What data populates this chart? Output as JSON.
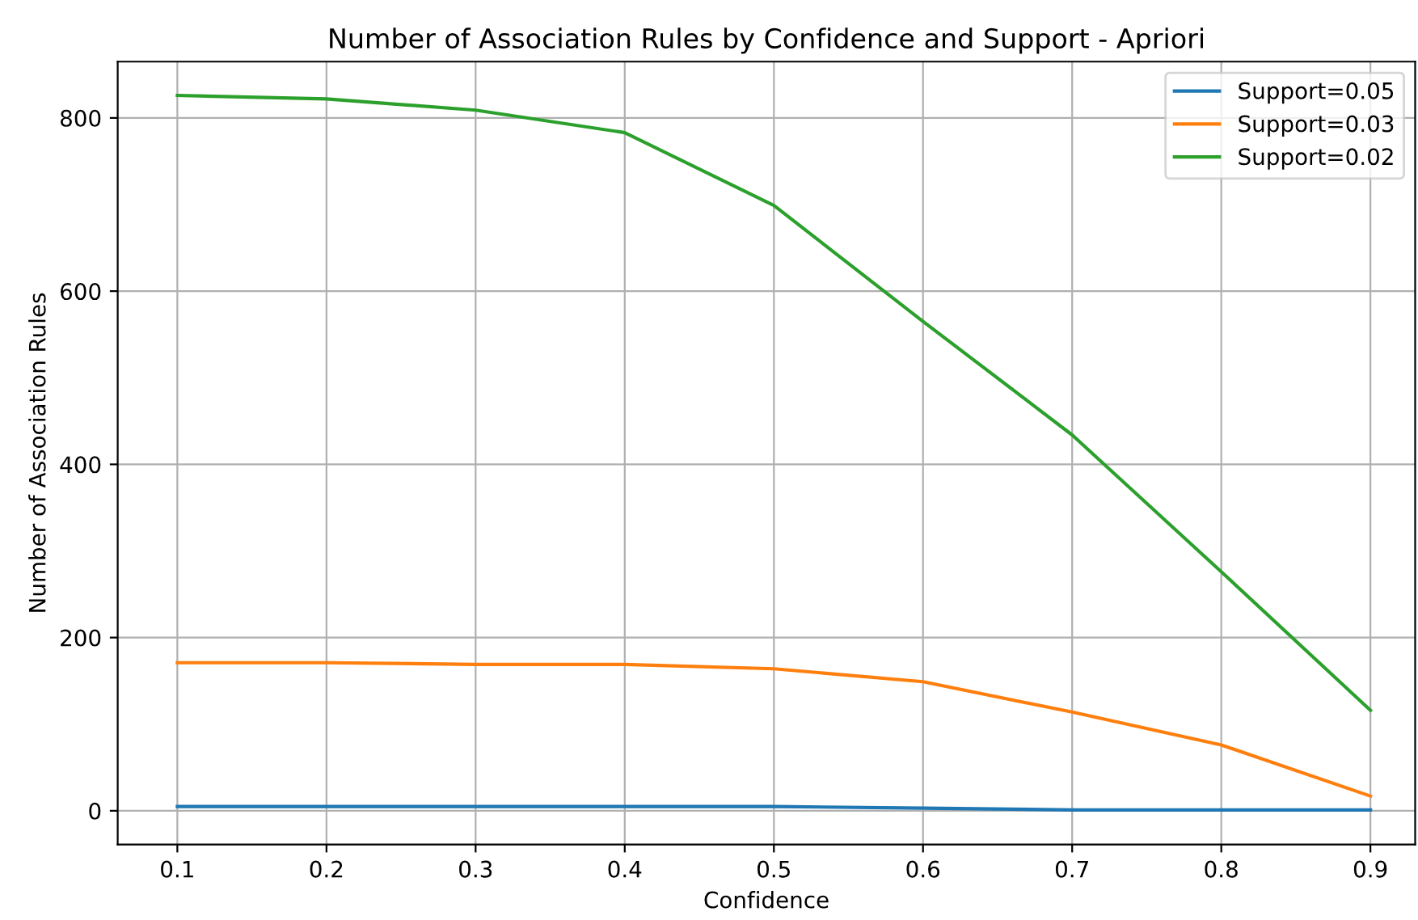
{
  "chart_data": {
    "type": "line",
    "title": "Number of Association Rules by Confidence and Support - Apriori",
    "xlabel": "Confidence",
    "ylabel": "Number of Association Rules",
    "x": [
      0.1,
      0.2,
      0.3,
      0.4,
      0.5,
      0.6,
      0.7,
      0.8,
      0.9
    ],
    "series": [
      {
        "name": "Support=0.05",
        "color": "#1f77b4",
        "values": [
          5,
          5,
          5,
          5,
          5,
          3,
          1,
          1,
          1
        ]
      },
      {
        "name": "Support=0.03",
        "color": "#ff7f0e",
        "values": [
          171,
          171,
          169,
          169,
          164,
          149,
          114,
          76,
          17
        ]
      },
      {
        "name": "Support=0.02",
        "color": "#2ca02c",
        "values": [
          826,
          822,
          809,
          783,
          699,
          565,
          434,
          276,
          116
        ]
      }
    ],
    "xlim": [
      0.06,
      0.93
    ],
    "xticks": [
      0.1,
      0.2,
      0.3,
      0.4,
      0.5,
      0.6,
      0.7,
      0.8,
      0.9
    ],
    "ylim": [
      -39,
      865
    ],
    "yticks": [
      0,
      200,
      400,
      600,
      800
    ],
    "grid": true,
    "legend": "top right",
    "marker": "none",
    "line_style": "solid"
  }
}
